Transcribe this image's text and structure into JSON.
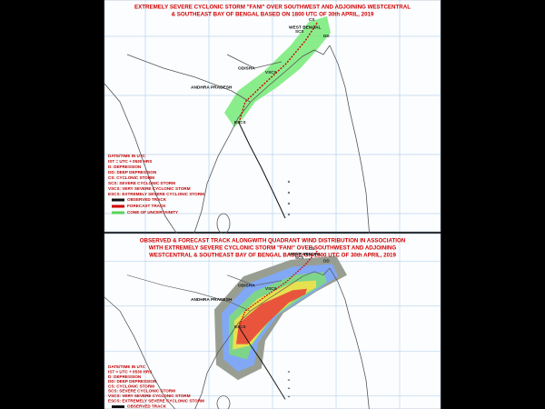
{
  "panels": [
    {
      "title": [
        "EXTREMELY SEVERE CYCLONIC STORM \"FANI\" OVER SOUTHWEST AND ADJOINING WESTCENTRAL",
        "& SOUTHEAST BAY OF BENGAL BASED ON 1800 UTC OF 30th APRIL, 2019"
      ],
      "places": [
        "WEST BENGAL",
        "ODISHA",
        "ANDHRA PRADESH"
      ],
      "stages": [
        "CS",
        "SCS",
        "VSCS",
        "ESCS",
        "DD"
      ],
      "legend": [
        "DATE/TIME IN UTC",
        "IST = UTC + 0530 HRS",
        "D: DEPRESSION",
        "DD: DEEP DEPRESSION",
        "CS: CYCLONIC STORM",
        "SCS: SEVERE CYCLONIC STORM",
        "VSCS: VERY SEVERE CYCLONIC STORM",
        "ESCS: EXTREMELY SEVERE CYCLONIC STORM"
      ],
      "key": [
        "OBSERVED TRACK",
        "FORECAST TRACK",
        "CONE OF UNCERTAINITY"
      ]
    },
    {
      "title": [
        "OBSERVED & FORECAST TRACK ALONGWITH QUADRANT WIND DISTRIBUTION IN ASSOCIATION",
        "WITH EXTREMELY SEVERE CYCLONIC STORM \"FANI\" OVER SOUTHWEST AND ADJOINING",
        "WESTCENTRAL & SOUTHEAST BAY OF BENGAL BASED ON 1800 UTC OF 30th APRIL, 2019"
      ],
      "places": [
        "WEST BENGAL",
        "ODISHA",
        "ANDHRA PRADESH"
      ],
      "stages": [
        "CS",
        "SCS",
        "VSCS",
        "ESCS",
        "DD"
      ],
      "legend": [
        "DATE/TIME IN UTC",
        "IST = UTC + 0530 HRS",
        "D: DEPRESSION",
        "DD: DEEP DEPRESSION",
        "CS: CYCLONIC STORM",
        "SCS: SEVERE CYCLONIC STORM",
        "VSCS: VERY SEVERE CYCLONIC STORM",
        "ESCS: EXTREMELY SEVERE CYCLONIC STORM"
      ],
      "key": [
        "OBSERVED TRACK"
      ]
    }
  ]
}
